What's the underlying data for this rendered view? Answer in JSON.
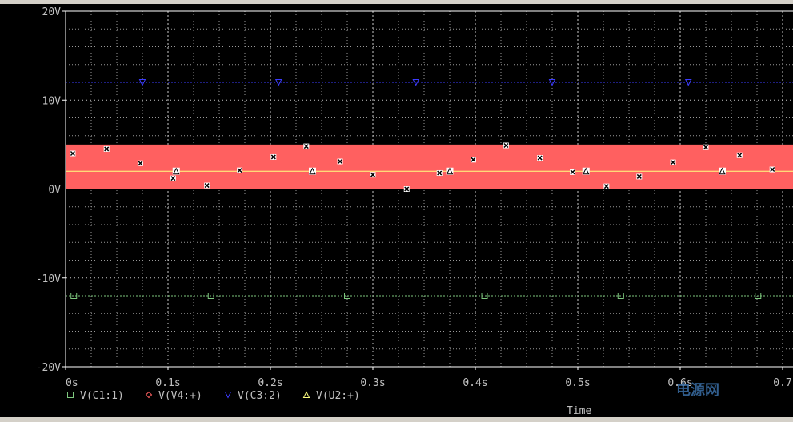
{
  "chart_data": {
    "type": "line",
    "xlabel": "Time",
    "xlim": [
      0,
      0.7
    ],
    "ylim": [
      -20,
      20
    ],
    "x_ticks": [
      {
        "v": 0.0,
        "t": "0s"
      },
      {
        "v": 0.1,
        "t": "0.1s"
      },
      {
        "v": 0.2,
        "t": "0.2s"
      },
      {
        "v": 0.3,
        "t": "0.3s"
      },
      {
        "v": 0.4,
        "t": "0.4s"
      },
      {
        "v": 0.5,
        "t": "0.5s"
      },
      {
        "v": 0.6,
        "t": "0.6s"
      },
      {
        "v": 0.7,
        "t": "0.7"
      }
    ],
    "y_ticks": [
      {
        "v": 20,
        "t": "20V"
      },
      {
        "v": 10,
        "t": "10V"
      },
      {
        "v": 0,
        "t": "0V"
      },
      {
        "v": -10,
        "t": "-10V"
      },
      {
        "v": -20,
        "t": "-20V"
      }
    ],
    "grid": true,
    "legend_position": "bottom-left",
    "series": [
      {
        "name": "V(C1:1)",
        "color": "#7ec87e",
        "marker": "square",
        "style": "dotted",
        "x": [
          0.0,
          0.7
        ],
        "y": [
          -12,
          -12
        ],
        "marker_x": [
          0.008,
          0.142,
          0.275,
          0.409,
          0.542,
          0.676
        ]
      },
      {
        "name": "V(V4:+)",
        "color": "#ff6060",
        "marker": "diamond",
        "style": "band",
        "x": [
          0.0,
          0.7
        ],
        "y_min": 0,
        "y_max": 5,
        "x_points": [
          0.007,
          0.04,
          0.073,
          0.105,
          0.138,
          0.17,
          0.203,
          0.235,
          0.268,
          0.3,
          0.333,
          0.365,
          0.398,
          0.43,
          0.463,
          0.495,
          0.528,
          0.56,
          0.593,
          0.625,
          0.658,
          0.69
        ],
        "y_points": [
          4.0,
          4.5,
          2.9,
          1.2,
          0.4,
          2.1,
          3.6,
          4.8,
          3.1,
          1.6,
          0.0,
          1.8,
          3.3,
          4.9,
          3.5,
          1.9,
          0.3,
          1.4,
          3.0,
          4.7,
          3.8,
          2.2
        ]
      },
      {
        "name": "V(C3:2)",
        "color": "#3c3cff",
        "marker": "triangle-down",
        "style": "dotted",
        "x": [
          0.0,
          0.7
        ],
        "y": [
          12,
          12
        ],
        "marker_x": [
          0.075,
          0.208,
          0.342,
          0.475,
          0.608
        ]
      },
      {
        "name": "V(U2:+)",
        "color": "#ffff80",
        "marker": "triangle-up",
        "style": "solid",
        "x": [
          0.0,
          0.7
        ],
        "y": [
          2,
          2
        ],
        "marker_x": [
          0.108,
          0.241,
          0.375,
          0.508,
          0.641
        ]
      }
    ]
  },
  "watermark": "电源网"
}
